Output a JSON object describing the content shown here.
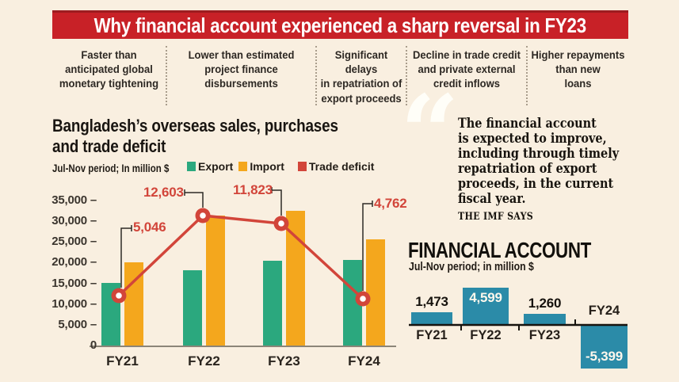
{
  "page": {
    "background": "#f9efe0"
  },
  "banner": {
    "text": "Why financial account experienced a sharp reversal in FY23",
    "bg": "#c82127",
    "top_edge": "#9d1c20"
  },
  "reasons": {
    "items": [
      "Faster than\nanticipated global\nmonetary tightening",
      "Lower than estimated\nproject finance\ndisbursements",
      "Significant delays\nin repatriation of\nexport proceeds",
      "Decline in trade credit\nand private external\ncredit inflows",
      "Higher repayments\nthan new\nloans"
    ]
  },
  "trade_chart": {
    "title": "Bangladesh’s overseas sales, purchases\nand trade deficit",
    "subtitle": "Jul-Nov period; In million $"
  },
  "quote": {
    "mark": "“",
    "text": "The financial account\nis expected to improve,\nincluding through timely\nrepatriation of export\nproceeds, in the current\nfiscal year.",
    "attribution": "THE IMF SAYS"
  },
  "chart_data": [
    {
      "type": "bar",
      "title": "Bangladesh’s overseas sales, purchases and trade deficit",
      "subtitle": "Jul-Nov period; In million $",
      "categories": [
        "FY21",
        "FY22",
        "FY23",
        "FY24"
      ],
      "series": [
        {
          "name": "Export",
          "type": "bar",
          "color": "#2ba87e",
          "values": [
            15300,
            18400,
            20700,
            20900
          ],
          "estimated": true
        },
        {
          "name": "Import",
          "type": "bar",
          "color": "#f4a71d",
          "values": [
            20300,
            31600,
            32700,
            25800
          ],
          "estimated": true
        },
        {
          "name": "Trade deficit",
          "type": "line",
          "color": "#d2453a",
          "values": [
            5046,
            12603,
            11823,
            4762
          ],
          "labels": [
            "5,046",
            "12,603",
            "11,823",
            "4,762"
          ]
        }
      ],
      "ylim": [
        0,
        35000
      ],
      "yticks": [
        {
          "label": "0",
          "value": 0
        },
        {
          "label": "5,000",
          "value": 5000
        },
        {
          "label": "10,000",
          "value": 10000
        },
        {
          "label": "15,000",
          "value": 15000
        },
        {
          "label": "20,000",
          "value": 20000
        },
        {
          "label": "25,000",
          "value": 25000
        },
        {
          "label": "30,000",
          "value": 30000
        },
        {
          "label": "35,000",
          "value": 35000
        }
      ],
      "grid": false,
      "legend_position": "top"
    },
    {
      "type": "bar",
      "title": "FINANCIAL ACCOUNT",
      "subtitle": "Jul-Nov period; in million $",
      "categories": [
        "FY21",
        "FY22",
        "FY23",
        "FY24"
      ],
      "values": [
        1473,
        4599,
        1260,
        -5399
      ],
      "labels": [
        "1,473",
        "4,599",
        "1,260",
        "-5,399"
      ],
      "bar_color": "#2b8ba8",
      "baseline": 0,
      "grid": false
    }
  ]
}
